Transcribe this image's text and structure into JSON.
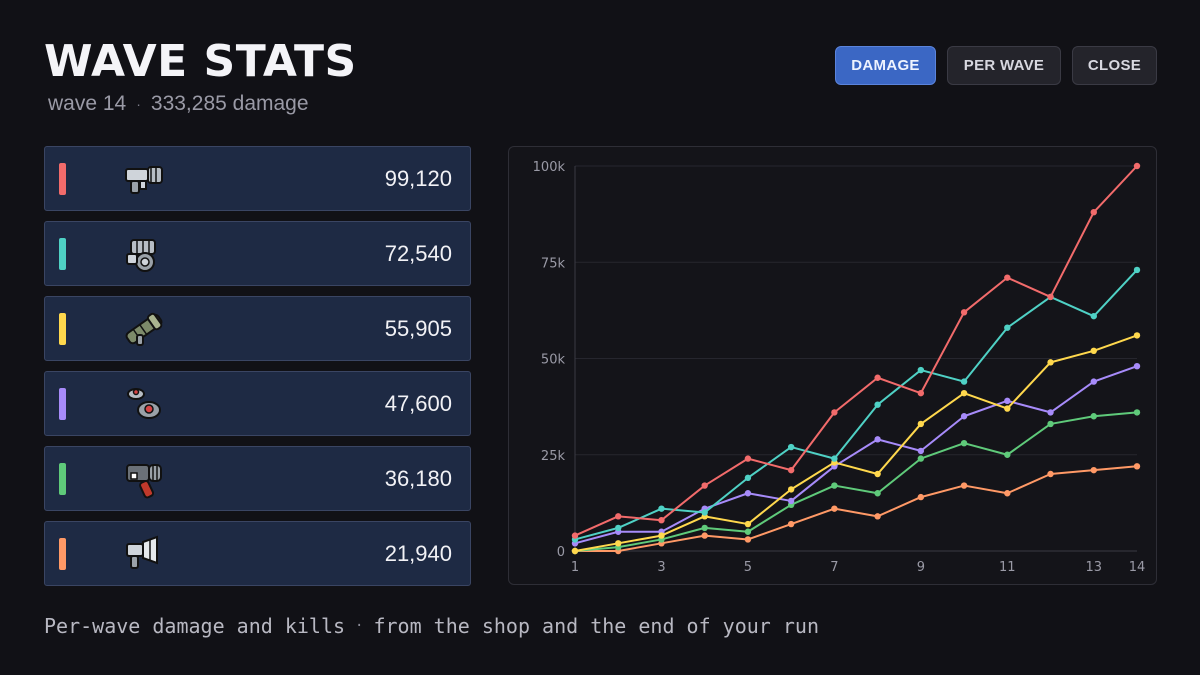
{
  "header": {
    "title": "WAVE STATS",
    "wave_label": "wave 14",
    "separator": "·",
    "damage_total": "333,285 damage"
  },
  "buttons": {
    "damage": "DAMAGE",
    "per_wave": "PER WAVE",
    "close": "CLOSE"
  },
  "weapons": [
    {
      "icon": "minigun-icon",
      "color": "#f26b6b",
      "value": "99,120"
    },
    {
      "icon": "gatling-icon",
      "color": "#4fd1c5",
      "value": "72,540"
    },
    {
      "icon": "rocket-launcher-icon",
      "color": "#ffd84d",
      "value": "55,905"
    },
    {
      "icon": "mine-icon",
      "color": "#a78bfa",
      "value": "47,600"
    },
    {
      "icon": "flamethrower-icon",
      "color": "#5fca7a",
      "value": "36,180"
    },
    {
      "icon": "blaster-icon",
      "color": "#ff9966",
      "value": "21,940"
    }
  ],
  "footer": {
    "left": "Per-wave damage and kills",
    "separator": "·",
    "right": "from the shop and the end of your run"
  },
  "chart_data": {
    "type": "line",
    "x": [
      1,
      2,
      3,
      4,
      5,
      6,
      7,
      8,
      9,
      10,
      11,
      12,
      13,
      14
    ],
    "x_tick_labels": [
      "1",
      "3",
      "5",
      "7",
      "9",
      "11",
      "13",
      "14"
    ],
    "y_tick_labels": [
      "0",
      "25k",
      "50k",
      "75k",
      "100k"
    ],
    "ylim": [
      0,
      100000
    ],
    "grid": true,
    "series": [
      {
        "color": "#f26b6b",
        "values": [
          4000,
          9000,
          8000,
          17000,
          24000,
          21000,
          36000,
          45000,
          41000,
          62000,
          71000,
          66000,
          88000,
          100000
        ]
      },
      {
        "color": "#4fd1c5",
        "values": [
          3000,
          6000,
          11000,
          10000,
          19000,
          27000,
          24000,
          38000,
          47000,
          44000,
          58000,
          66000,
          61000,
          73000
        ]
      },
      {
        "color": "#ffd84d",
        "values": [
          0,
          2000,
          4000,
          9000,
          7000,
          16000,
          23000,
          20000,
          33000,
          41000,
          37000,
          49000,
          52000,
          56000
        ]
      },
      {
        "color": "#a78bfa",
        "values": [
          2000,
          5000,
          5000,
          11000,
          15000,
          13000,
          22000,
          29000,
          26000,
          35000,
          39000,
          36000,
          44000,
          48000
        ]
      },
      {
        "color": "#5fca7a",
        "values": [
          0,
          1000,
          3000,
          6000,
          5000,
          12000,
          17000,
          15000,
          24000,
          28000,
          25000,
          33000,
          35000,
          36000
        ]
      },
      {
        "color": "#ff9966",
        "values": [
          0,
          0,
          2000,
          4000,
          3000,
          7000,
          11000,
          9000,
          14000,
          17000,
          15000,
          20000,
          21000,
          22000
        ]
      }
    ]
  }
}
